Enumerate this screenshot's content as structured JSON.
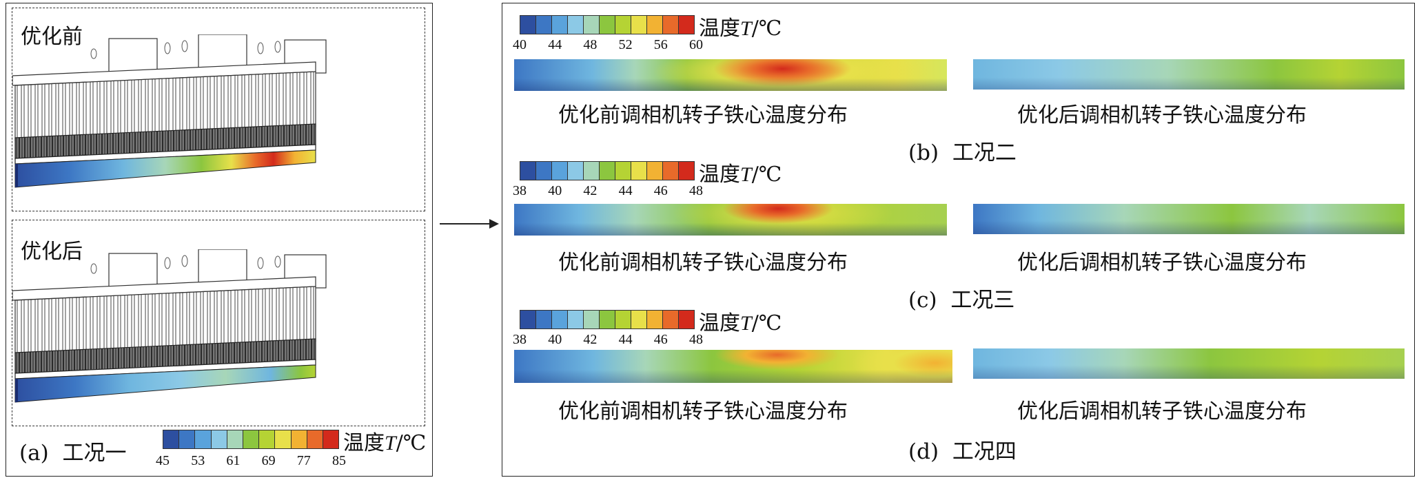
{
  "panel_a": {
    "before_label": "优化前",
    "after_label": "优化后",
    "caption_letter": "(a)",
    "caption_text": "工况一",
    "legend": {
      "title_prefix": "温度",
      "title_var": "T",
      "title_unit": "/℃",
      "ticks": [
        "45",
        "53",
        "61",
        "69",
        "77",
        "85"
      ]
    }
  },
  "colorbar_colors": [
    "#2d4fa0",
    "#3d77c4",
    "#5aa3dc",
    "#8cc9e6",
    "#a7d6b8",
    "#8cc63f",
    "#b5d334",
    "#e8e04a",
    "#f2b233",
    "#e86a2a",
    "#d32a1c"
  ],
  "panels": [
    {
      "legend": {
        "title_prefix": "温度",
        "title_var": "T",
        "title_unit": "/℃",
        "ticks": [
          "40",
          "44",
          "48",
          "52",
          "56",
          "60"
        ]
      },
      "before_label": "优化前调相机转子铁心温度分布",
      "after_label": "优化后调相机转子铁心温度分布",
      "caption_letter": "(b)",
      "caption_text": "工况二"
    },
    {
      "legend": {
        "title_prefix": "温度",
        "title_var": "T",
        "title_unit": "/℃",
        "ticks": [
          "38",
          "40",
          "42",
          "44",
          "46",
          "48"
        ]
      },
      "before_label": "优化前调相机转子铁心温度分布",
      "after_label": "优化后调相机转子铁心温度分布",
      "caption_letter": "(c)",
      "caption_text": "工况三"
    },
    {
      "legend": {
        "title_prefix": "温度",
        "title_var": "T",
        "title_unit": "/℃",
        "ticks": [
          "38",
          "40",
          "42",
          "44",
          "46",
          "48"
        ]
      },
      "before_label": "优化前调相机转子铁心温度分布",
      "after_label": "优化后调相机转子铁心温度分布",
      "caption_letter": "(d)",
      "caption_text": "工况四"
    }
  ]
}
